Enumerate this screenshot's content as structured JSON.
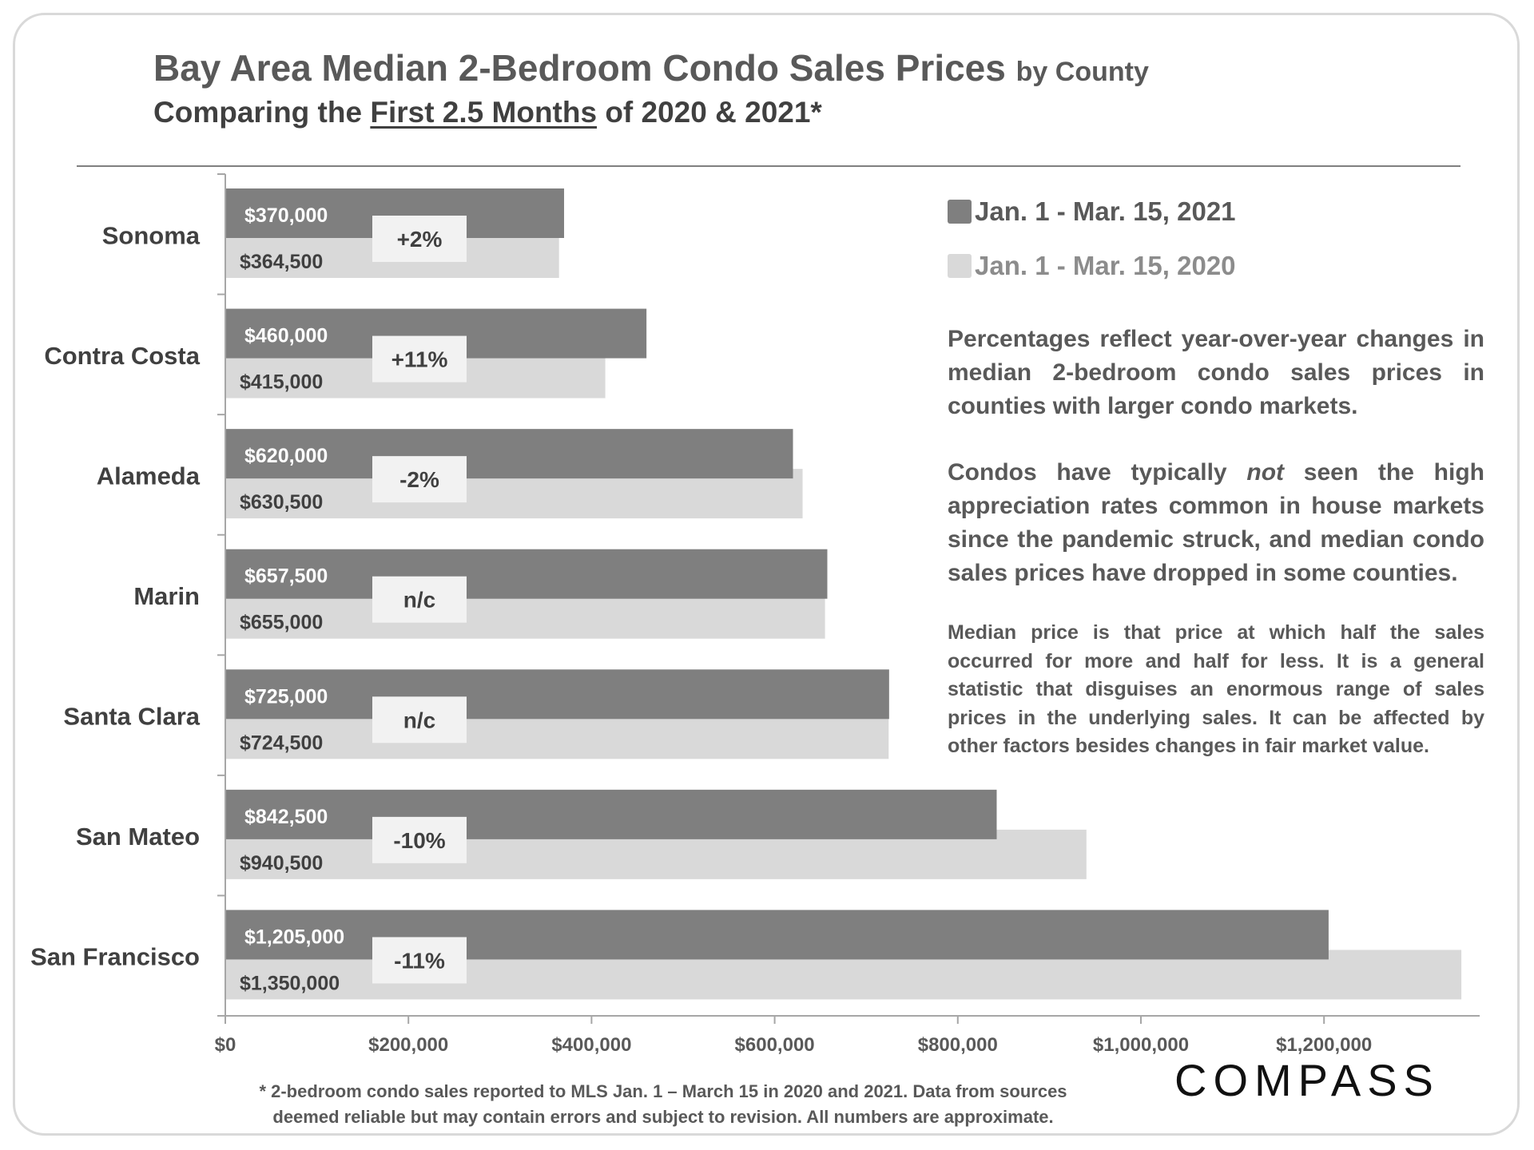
{
  "header": {
    "title_main": "Bay Area Median 2-Bedroom Condo Sales Prices",
    "title_suffix": "by County",
    "subtitle_pre": "Comparing the",
    "subtitle_underlined": "First 2.5 Months",
    "subtitle_post": "of 2020 & 2021*"
  },
  "legend": {
    "series_2021": "Jan. 1 - Mar. 15, 2021",
    "series_2020": "Jan. 1 - Mar. 15, 2020"
  },
  "notes": {
    "note1": "Percentages reflect year-over-year changes in median 2-bedroom condo sales prices in counties with larger condo markets.",
    "note2_pre": "Condos have typically",
    "note2_em": "not",
    "note2_post": "seen the high appreciation rates common in house markets since the pandemic struck, and median condo sales prices have dropped in some counties.",
    "note3": "Median price is that price at which half the sales occurred for more and half for less. It is a general statistic that disguises an enormous range of sales prices in the underlying sales. It can be affected by other factors besides changes in fair market value."
  },
  "footnote": {
    "line1": "* 2-bedroom condo sales reported to MLS Jan. 1 – March 15 in 2020 and 2021. Data from sources",
    "line2": "deemed reliable but may contain errors and subject to revision.  All numbers are approximate."
  },
  "logo": "COMPASS",
  "colors": {
    "bar_2021": "#7f7f7f",
    "bar_2020": "#d9d9d9",
    "change_box": "#f2f2f2",
    "text": "#404040"
  },
  "chart_data": {
    "type": "bar",
    "orientation": "horizontal",
    "categories": [
      "Sonoma",
      "Contra Costa",
      "Alameda",
      "Marin",
      "Santa Clara",
      "San Mateo",
      "San Francisco"
    ],
    "series": [
      {
        "name": "Jan. 1 - Mar. 15, 2021",
        "values": [
          370000,
          460000,
          620000,
          657500,
          725000,
          842500,
          1205000
        ],
        "labels": [
          "$370,000",
          "$460,000",
          "$620,000",
          "$657,500",
          "$725,000",
          "$842,500",
          "$1,205,000"
        ]
      },
      {
        "name": "Jan. 1 - Mar. 15, 2020",
        "values": [
          364500,
          415000,
          630500,
          655000,
          724500,
          940500,
          1350000
        ],
        "labels": [
          "$364,500",
          "$415,000",
          "$630,500",
          "$655,000",
          "$724,500",
          "$940,500",
          "$1,350,000"
        ]
      }
    ],
    "changes": [
      "+2%",
      "+11%",
      "-2%",
      "n/c",
      "n/c",
      "-10%",
      "-11%"
    ],
    "xlim": [
      0,
      1370000
    ],
    "xticks": [
      0,
      200000,
      400000,
      600000,
      800000,
      1000000,
      1200000
    ],
    "xtick_labels": [
      "$0",
      "$200,000",
      "$400,000",
      "$600,000",
      "$800,000",
      "$1,000,000",
      "$1,200,000"
    ],
    "title": "Bay Area Median 2-Bedroom Condo Sales Prices by County",
    "xlabel": "",
    "ylabel": "",
    "grid": false,
    "legend_position": "top-right"
  }
}
